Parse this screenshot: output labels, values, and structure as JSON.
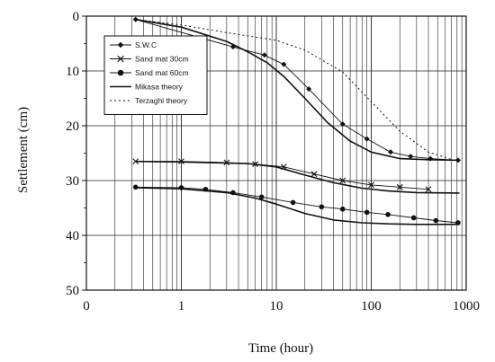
{
  "chart_data": {
    "type": "line",
    "xlabel": "Time (hour)",
    "ylabel": "Settlement (cm)",
    "x_scale": "log",
    "xlim": [
      0.1,
      1000
    ],
    "ylim": [
      0,
      50
    ],
    "y_inverted": true,
    "x_ticks": [
      {
        "value": 0.1,
        "label": "0"
      },
      {
        "value": 1,
        "label": "1"
      },
      {
        "value": 10,
        "label": "10"
      },
      {
        "value": 100,
        "label": "100"
      },
      {
        "value": 1000,
        "label": "1000"
      }
    ],
    "y_ticks": [
      0,
      10,
      20,
      30,
      40,
      50
    ],
    "grid": true,
    "legend_position": "top-left",
    "series": [
      {
        "name": "S.W.C",
        "style": "measured",
        "marker": "diamond",
        "x": [
          0.33,
          3.5,
          7.5,
          12,
          22,
          50,
          90,
          160,
          260,
          420,
          820
        ],
        "y": [
          0.6,
          5.6,
          7.1,
          8.8,
          13.3,
          19.7,
          22.4,
          24.8,
          25.6,
          26,
          26.3
        ]
      },
      {
        "name": "Sand mat 30cm",
        "style": "measured",
        "marker": "x",
        "x": [
          0.33,
          1,
          3,
          6,
          12,
          25,
          50,
          100,
          200,
          400
        ],
        "y": [
          26.5,
          26.5,
          26.7,
          27,
          27.5,
          28.8,
          30,
          30.8,
          31.2,
          31.6
        ]
      },
      {
        "name": "Sand mat 60cm",
        "style": "measured",
        "marker": "circle",
        "x": [
          0.33,
          1,
          1.8,
          3.5,
          7,
          15,
          30,
          50,
          90,
          150,
          280,
          480,
          820
        ],
        "y": [
          31.2,
          31.3,
          31.6,
          32.2,
          33,
          34,
          34.8,
          35.2,
          35.8,
          36.2,
          36.8,
          37.3,
          37.7
        ]
      },
      {
        "name": "Mikasa theory",
        "style": "theory-solid",
        "x": [
          0.33,
          1,
          3,
          5,
          8,
          12,
          20,
          35,
          60,
          100,
          200,
          400,
          850
        ],
        "y": [
          0.6,
          2,
          4.6,
          6.5,
          8.5,
          11,
          15,
          19.5,
          22.8,
          24.8,
          26,
          26.2,
          26.3
        ]
      },
      {
        "name": "",
        "style": "theory-solid",
        "x": [
          0.33,
          1,
          5,
          10,
          20,
          40,
          80,
          150,
          300,
          850
        ],
        "y": [
          26.5,
          26.6,
          26.9,
          27.5,
          29,
          30.4,
          31.4,
          31.9,
          32.2,
          32.3
        ]
      },
      {
        "name": "",
        "style": "theory-solid",
        "x": [
          0.33,
          1,
          3,
          6,
          10,
          20,
          40,
          80,
          150,
          300,
          850
        ],
        "y": [
          31.3,
          31.5,
          32.2,
          33.2,
          34.3,
          36,
          37.2,
          37.7,
          37.9,
          38,
          38
        ]
      },
      {
        "name": "Terzaghi theory",
        "style": "theory-dotted",
        "x": [
          0.33,
          1,
          3,
          10,
          20,
          50,
          100,
          200,
          400,
          850
        ],
        "y": [
          0.6,
          1.6,
          3,
          4.4,
          6.2,
          10.2,
          15.6,
          21,
          24.8,
          26.6
        ]
      }
    ]
  }
}
